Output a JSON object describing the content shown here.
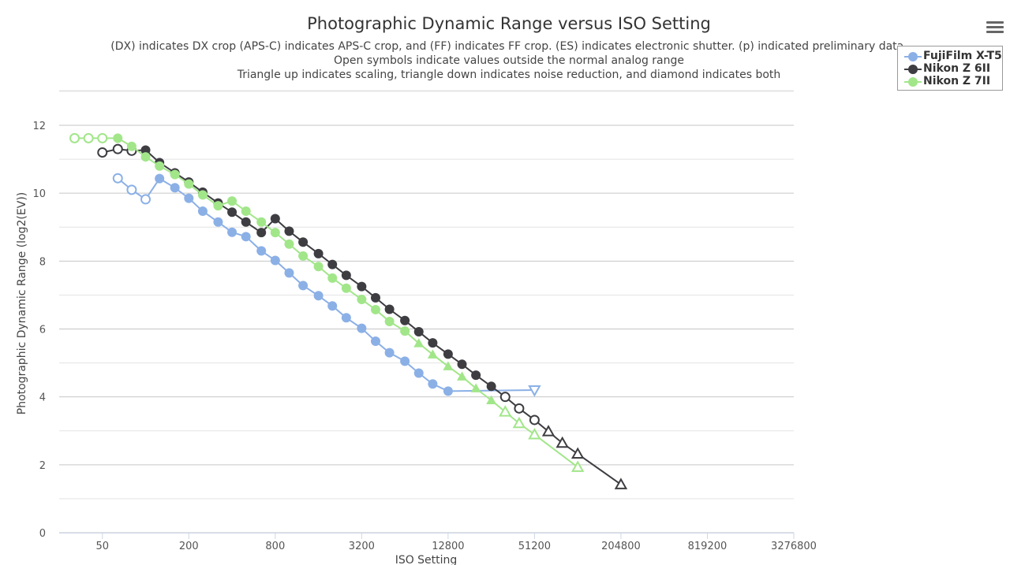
{
  "chart_data": {
    "type": "line",
    "title": "Photographic Dynamic Range versus ISO Setting",
    "subtitle_lines": [
      "(DX) indicates DX crop (APS-C) indicates APS-C crop, and (FF) indicates FF crop. (ES) indicates electronic shutter. (p) indicated preliminary data.",
      "Open symbols indicate values outside the normal analog range",
      "Triangle up indicates scaling, triangle down indicates noise reduction, and diamond indicates both"
    ],
    "xlabel": "ISO Setting",
    "ylabel": "Photographic Dynamic Range (log2(EV))",
    "x_scale": "log2",
    "xlim": [
      25,
      3276800
    ],
    "ylim": [
      0,
      12
    ],
    "x_ticks": [
      50,
      200,
      800,
      3200,
      12800,
      51200,
      204800,
      819200,
      3276800
    ],
    "y_ticks": [
      0,
      2,
      4,
      6,
      8,
      10,
      12
    ],
    "grid": true,
    "legend_position": "top-right",
    "series": [
      {
        "name": "FujiFilm X-T5",
        "color": "#8bb0e6",
        "points": [
          {
            "x": 64,
            "y": 10.44,
            "m": "oc"
          },
          {
            "x": 80,
            "y": 10.1,
            "m": "oc"
          },
          {
            "x": 100,
            "y": 9.82,
            "m": "oc"
          },
          {
            "x": 125,
            "y": 10.43,
            "m": "c"
          },
          {
            "x": 160,
            "y": 10.16,
            "m": "c"
          },
          {
            "x": 200,
            "y": 9.85,
            "m": "c"
          },
          {
            "x": 250,
            "y": 9.47,
            "m": "c"
          },
          {
            "x": 320,
            "y": 9.15,
            "m": "c"
          },
          {
            "x": 400,
            "y": 8.85,
            "m": "c"
          },
          {
            "x": 500,
            "y": 8.72,
            "m": "c"
          },
          {
            "x": 640,
            "y": 8.3,
            "m": "c"
          },
          {
            "x": 800,
            "y": 8.02,
            "m": "c"
          },
          {
            "x": 1000,
            "y": 7.65,
            "m": "c"
          },
          {
            "x": 1250,
            "y": 7.28,
            "m": "c"
          },
          {
            "x": 1600,
            "y": 6.98,
            "m": "c"
          },
          {
            "x": 2000,
            "y": 6.68,
            "m": "c"
          },
          {
            "x": 2500,
            "y": 6.33,
            "m": "c"
          },
          {
            "x": 3200,
            "y": 6.02,
            "m": "c"
          },
          {
            "x": 4000,
            "y": 5.64,
            "m": "c"
          },
          {
            "x": 5000,
            "y": 5.3,
            "m": "c"
          },
          {
            "x": 6400,
            "y": 5.05,
            "m": "c"
          },
          {
            "x": 8000,
            "y": 4.7,
            "m": "c"
          },
          {
            "x": 10000,
            "y": 4.38,
            "m": "c"
          },
          {
            "x": 12800,
            "y": 4.17,
            "m": "c"
          },
          {
            "x": 51200,
            "y": 4.2,
            "m": "tdo"
          }
        ]
      },
      {
        "name": "Nikon Z 6II",
        "color": "#3d3d42",
        "points": [
          {
            "x": 50,
            "y": 11.2,
            "m": "oc"
          },
          {
            "x": 64,
            "y": 11.3,
            "m": "oc"
          },
          {
            "x": 80,
            "y": 11.25,
            "m": "oc"
          },
          {
            "x": 100,
            "y": 11.27,
            "m": "c"
          },
          {
            "x": 125,
            "y": 10.9,
            "m": "c"
          },
          {
            "x": 160,
            "y": 10.6,
            "m": "c"
          },
          {
            "x": 200,
            "y": 10.33,
            "m": "c"
          },
          {
            "x": 250,
            "y": 10.03,
            "m": "c"
          },
          {
            "x": 320,
            "y": 9.71,
            "m": "c"
          },
          {
            "x": 400,
            "y": 9.44,
            "m": "c"
          },
          {
            "x": 500,
            "y": 9.15,
            "m": "c"
          },
          {
            "x": 640,
            "y": 8.84,
            "m": "c"
          },
          {
            "x": 800,
            "y": 9.25,
            "m": "c"
          },
          {
            "x": 1000,
            "y": 8.88,
            "m": "c"
          },
          {
            "x": 1250,
            "y": 8.56,
            "m": "c"
          },
          {
            "x": 1600,
            "y": 8.22,
            "m": "c"
          },
          {
            "x": 2000,
            "y": 7.9,
            "m": "c"
          },
          {
            "x": 2500,
            "y": 7.58,
            "m": "c"
          },
          {
            "x": 3200,
            "y": 7.25,
            "m": "c"
          },
          {
            "x": 4000,
            "y": 6.92,
            "m": "c"
          },
          {
            "x": 5000,
            "y": 6.58,
            "m": "c"
          },
          {
            "x": 6400,
            "y": 6.25,
            "m": "c"
          },
          {
            "x": 8000,
            "y": 5.92,
            "m": "c"
          },
          {
            "x": 10000,
            "y": 5.59,
            "m": "c"
          },
          {
            "x": 12800,
            "y": 5.26,
            "m": "c"
          },
          {
            "x": 16000,
            "y": 4.96,
            "m": "c"
          },
          {
            "x": 20000,
            "y": 4.64,
            "m": "c"
          },
          {
            "x": 25600,
            "y": 4.31,
            "m": "c"
          },
          {
            "x": 32000,
            "y": 4.0,
            "m": "oc"
          },
          {
            "x": 40000,
            "y": 3.66,
            "m": "oc"
          },
          {
            "x": 51200,
            "y": 3.32,
            "m": "oc"
          },
          {
            "x": 64000,
            "y": 2.98,
            "m": "tuo"
          },
          {
            "x": 80000,
            "y": 2.64,
            "m": "tuo"
          },
          {
            "x": 102400,
            "y": 2.32,
            "m": "tuo"
          },
          {
            "x": 204800,
            "y": 1.42,
            "m": "tuo"
          }
        ]
      },
      {
        "name": "Nikon Z 7II",
        "color": "#a2e68a",
        "points": [
          {
            "x": 32,
            "y": 11.62,
            "m": "oc"
          },
          {
            "x": 40,
            "y": 11.62,
            "m": "oc"
          },
          {
            "x": 50,
            "y": 11.62,
            "m": "oc"
          },
          {
            "x": 64,
            "y": 11.62,
            "m": "c"
          },
          {
            "x": 80,
            "y": 11.38,
            "m": "c"
          },
          {
            "x": 100,
            "y": 11.07,
            "m": "c"
          },
          {
            "x": 125,
            "y": 10.8,
            "m": "c"
          },
          {
            "x": 160,
            "y": 10.55,
            "m": "c"
          },
          {
            "x": 200,
            "y": 10.27,
            "m": "c"
          },
          {
            "x": 250,
            "y": 9.95,
            "m": "c"
          },
          {
            "x": 320,
            "y": 9.63,
            "m": "c"
          },
          {
            "x": 400,
            "y": 9.77,
            "m": "c"
          },
          {
            "x": 500,
            "y": 9.47,
            "m": "c"
          },
          {
            "x": 640,
            "y": 9.15,
            "m": "c"
          },
          {
            "x": 800,
            "y": 8.84,
            "m": "c"
          },
          {
            "x": 1000,
            "y": 8.5,
            "m": "c"
          },
          {
            "x": 1250,
            "y": 8.15,
            "m": "c"
          },
          {
            "x": 1600,
            "y": 7.84,
            "m": "c"
          },
          {
            "x": 2000,
            "y": 7.5,
            "m": "c"
          },
          {
            "x": 2500,
            "y": 7.2,
            "m": "c"
          },
          {
            "x": 3200,
            "y": 6.87,
            "m": "c"
          },
          {
            "x": 4000,
            "y": 6.57,
            "m": "c"
          },
          {
            "x": 5000,
            "y": 6.22,
            "m": "c"
          },
          {
            "x": 6400,
            "y": 5.94,
            "m": "c"
          },
          {
            "x": 8000,
            "y": 5.58,
            "m": "tu"
          },
          {
            "x": 10000,
            "y": 5.25,
            "m": "tu"
          },
          {
            "x": 12800,
            "y": 4.9,
            "m": "tu"
          },
          {
            "x": 16000,
            "y": 4.6,
            "m": "tu"
          },
          {
            "x": 20000,
            "y": 4.25,
            "m": "tu"
          },
          {
            "x": 25600,
            "y": 3.9,
            "m": "tu"
          },
          {
            "x": 32000,
            "y": 3.56,
            "m": "tuo"
          },
          {
            "x": 40000,
            "y": 3.22,
            "m": "tuo"
          },
          {
            "x": 51200,
            "y": 2.89,
            "m": "tuo"
          },
          {
            "x": 102400,
            "y": 1.93,
            "m": "tuo"
          }
        ]
      }
    ]
  }
}
